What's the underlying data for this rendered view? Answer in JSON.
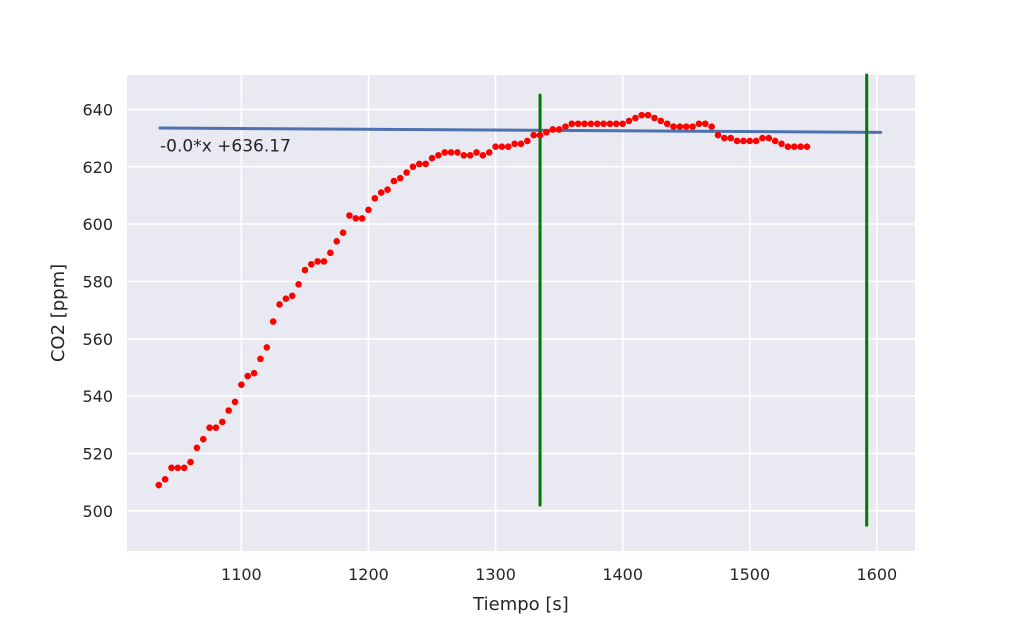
{
  "chart_data": {
    "type": "scatter",
    "title": "",
    "xlabel": "Tiempo [s]",
    "ylabel": "CO2 [ppm]",
    "xlim": [
      1010,
      1630
    ],
    "ylim": [
      486,
      652
    ],
    "xticks": [
      1100,
      1200,
      1300,
      1400,
      1500,
      1600
    ],
    "yticks": [
      500,
      520,
      540,
      560,
      580,
      600,
      620,
      640
    ],
    "grid": true,
    "background": "#e9e9f1",
    "series": [
      {
        "kind": "scatter",
        "color": "#ff0000",
        "points": [
          [
            1035,
            509
          ],
          [
            1040,
            511
          ],
          [
            1045,
            515
          ],
          [
            1050,
            515
          ],
          [
            1055,
            515
          ],
          [
            1060,
            517
          ],
          [
            1065,
            522
          ],
          [
            1070,
            525
          ],
          [
            1075,
            529
          ],
          [
            1080,
            529
          ],
          [
            1085,
            531
          ],
          [
            1090,
            535
          ],
          [
            1095,
            538
          ],
          [
            1100,
            544
          ],
          [
            1105,
            547
          ],
          [
            1110,
            548
          ],
          [
            1115,
            553
          ],
          [
            1120,
            557
          ],
          [
            1125,
            566
          ],
          [
            1130,
            572
          ],
          [
            1135,
            574
          ],
          [
            1140,
            575
          ],
          [
            1145,
            579
          ],
          [
            1150,
            584
          ],
          [
            1155,
            586
          ],
          [
            1160,
            587
          ],
          [
            1165,
            587
          ],
          [
            1170,
            590
          ],
          [
            1175,
            594
          ],
          [
            1180,
            597
          ],
          [
            1185,
            603
          ],
          [
            1190,
            602
          ],
          [
            1195,
            602
          ],
          [
            1200,
            605
          ],
          [
            1205,
            609
          ],
          [
            1210,
            611
          ],
          [
            1215,
            612
          ],
          [
            1220,
            615
          ],
          [
            1225,
            616
          ],
          [
            1230,
            618
          ],
          [
            1235,
            620
          ],
          [
            1240,
            621
          ],
          [
            1245,
            621
          ],
          [
            1250,
            623
          ],
          [
            1255,
            624
          ],
          [
            1260,
            625
          ],
          [
            1265,
            625
          ],
          [
            1270,
            625
          ],
          [
            1275,
            624
          ],
          [
            1280,
            624
          ],
          [
            1285,
            625
          ],
          [
            1290,
            624
          ],
          [
            1295,
            625
          ],
          [
            1300,
            627
          ],
          [
            1305,
            627
          ],
          [
            1310,
            627
          ],
          [
            1315,
            628
          ],
          [
            1320,
            628
          ],
          [
            1325,
            629
          ],
          [
            1330,
            631
          ],
          [
            1335,
            631
          ],
          [
            1340,
            632
          ],
          [
            1345,
            633
          ],
          [
            1350,
            633
          ],
          [
            1355,
            634
          ],
          [
            1360,
            635
          ],
          [
            1365,
            635
          ],
          [
            1370,
            635
          ],
          [
            1375,
            635
          ],
          [
            1380,
            635
          ],
          [
            1385,
            635
          ],
          [
            1390,
            635
          ],
          [
            1395,
            635
          ],
          [
            1400,
            635
          ],
          [
            1405,
            636
          ],
          [
            1410,
            637
          ],
          [
            1415,
            638
          ],
          [
            1420,
            638
          ],
          [
            1425,
            637
          ],
          [
            1430,
            636
          ],
          [
            1435,
            635
          ],
          [
            1440,
            634
          ],
          [
            1445,
            634
          ],
          [
            1450,
            634
          ],
          [
            1455,
            634
          ],
          [
            1460,
            635
          ],
          [
            1465,
            635
          ],
          [
            1470,
            634
          ],
          [
            1475,
            631
          ],
          [
            1480,
            630
          ],
          [
            1485,
            630
          ],
          [
            1490,
            629
          ],
          [
            1495,
            629
          ],
          [
            1500,
            629
          ],
          [
            1505,
            629
          ],
          [
            1510,
            630
          ],
          [
            1515,
            630
          ],
          [
            1520,
            629
          ],
          [
            1525,
            628
          ],
          [
            1530,
            627
          ],
          [
            1535,
            627
          ],
          [
            1540,
            627
          ],
          [
            1545,
            627
          ]
        ]
      },
      {
        "kind": "line",
        "color": "#4c72b0",
        "points": [
          [
            1036,
            633.5
          ],
          [
            1603,
            632.0
          ]
        ]
      },
      {
        "kind": "vline",
        "color": "#007a00",
        "x": 1335,
        "y": [
          502,
          645
        ]
      },
      {
        "kind": "vline",
        "color": "#007a00",
        "x": 1592,
        "y": [
          495,
          652
        ]
      }
    ],
    "annotations": [
      {
        "text": "-0.0*x +636.17",
        "x": 1036,
        "y": 627
      }
    ]
  }
}
